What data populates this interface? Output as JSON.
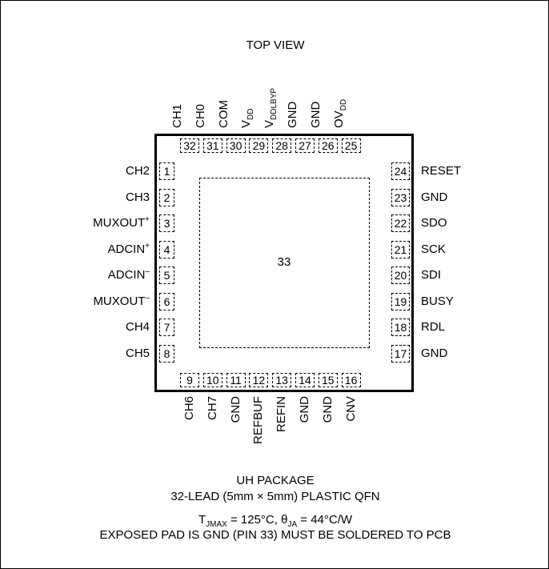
{
  "header": {
    "title": "TOP VIEW"
  },
  "package": {
    "name": "UH PACKAGE",
    "description": "32-LEAD (5mm × 5mm) PLASTIC QFN",
    "thermal": {
      "t_prefix": "T",
      "t_sub": "JMAX",
      "t_value": " = 125°C, ",
      "theta": "θ",
      "theta_sub": "JA",
      "theta_value": " = 44°C/W"
    },
    "note": "EXPOSED PAD IS GND (PIN 33) MUST BE SOLDERED TO PCB"
  },
  "exposed_pad": {
    "number": "33"
  },
  "pins": {
    "top": [
      {
        "num": "32",
        "label": "CH1"
      },
      {
        "num": "31",
        "label": "CH0"
      },
      {
        "num": "30",
        "label": "COM"
      },
      {
        "num": "29",
        "label": "V",
        "sub": "DD"
      },
      {
        "num": "28",
        "label": "V",
        "sub": "DDLBYP"
      },
      {
        "num": "27",
        "label": "GND"
      },
      {
        "num": "26",
        "label": "GND"
      },
      {
        "num": "25",
        "label": "OV",
        "sub": "DD"
      }
    ],
    "left": [
      {
        "num": "1",
        "label": "CH2"
      },
      {
        "num": "2",
        "label": "CH3"
      },
      {
        "num": "3",
        "label": "MUXOUT",
        "sup": "+"
      },
      {
        "num": "4",
        "label": "ADCIN",
        "sup": "+"
      },
      {
        "num": "5",
        "label": "ADCIN",
        "sup": "–"
      },
      {
        "num": "6",
        "label": "MUXOUT",
        "sup": "–"
      },
      {
        "num": "7",
        "label": "CH4"
      },
      {
        "num": "8",
        "label": "CH5"
      }
    ],
    "right": [
      {
        "num": "24",
        "label": "RESET"
      },
      {
        "num": "23",
        "label": "GND"
      },
      {
        "num": "22",
        "label": "SDO"
      },
      {
        "num": "21",
        "label": "SCK"
      },
      {
        "num": "20",
        "label": "SDI"
      },
      {
        "num": "19",
        "label": "BUSY"
      },
      {
        "num": "18",
        "label": "RDL"
      },
      {
        "num": "17",
        "label": "GND"
      }
    ],
    "bottom": [
      {
        "num": "9",
        "label": "CH6"
      },
      {
        "num": "10",
        "label": "CH7"
      },
      {
        "num": "11",
        "label": "GND"
      },
      {
        "num": "12",
        "label": "REFBUF"
      },
      {
        "num": "13",
        "label": "REFIN"
      },
      {
        "num": "14",
        "label": "GND"
      },
      {
        "num": "15",
        "label": "GND"
      },
      {
        "num": "16",
        "label": "CNV"
      }
    ]
  }
}
